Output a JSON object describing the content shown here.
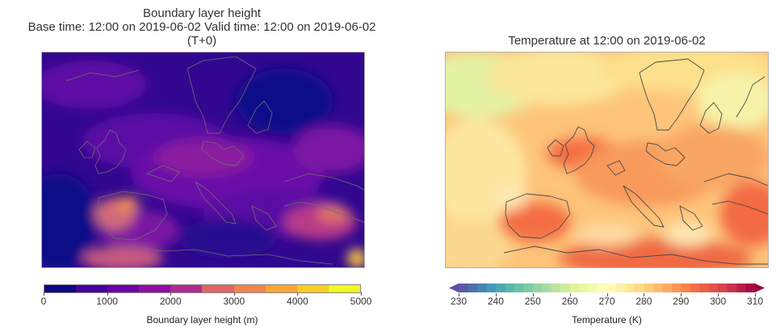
{
  "left_panel": {
    "title_line1": "Boundary layer height",
    "title_line2": "Base time: 12:00 on 2019-06-02   Valid time: 12:00 on 2019-06-02",
    "title_line3": "(T+0)",
    "colorbar": {
      "label": "Boundary layer height (m)",
      "ticks": [
        "0",
        "1000",
        "2000",
        "3000",
        "4000",
        "5000"
      ],
      "colors": [
        "#0d0887",
        "#41049d",
        "#6a00a8",
        "#8f0da4",
        "#b12a90",
        "#cc4778",
        "#e16462",
        "#f2844b",
        "#fca636",
        "#fcce25",
        "#f0f921"
      ]
    }
  },
  "right_panel": {
    "title": "Temperature at 12:00 on 2019-06-02",
    "colorbar": {
      "label": "Temperature (K)",
      "ticks": [
        "230",
        "240",
        "250",
        "260",
        "270",
        "280",
        "290",
        "300",
        "310"
      ],
      "colors": [
        "#5e4fa2",
        "#3f96b7",
        "#66c2a5",
        "#abdda4",
        "#e6f598",
        "#ffffbf",
        "#fee08b",
        "#fdae61",
        "#f46d43",
        "#d53e4f",
        "#9e0142"
      ]
    }
  }
}
